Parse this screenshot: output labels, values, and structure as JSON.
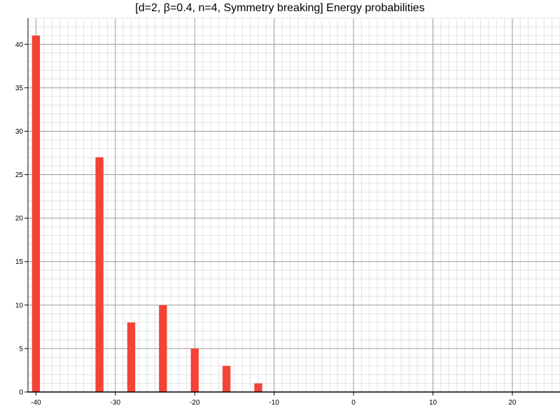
{
  "chart_data": {
    "type": "bar",
    "title": "[d=2, β=0.4, n=4, Symmetry breaking] Energy probabilities",
    "xlabel": "",
    "ylabel": "",
    "xlim": [
      -41,
      26
    ],
    "ylim": [
      0,
      43
    ],
    "x_ticks": [
      -40,
      -30,
      -20,
      -10,
      0,
      10,
      20
    ],
    "y_ticks": [
      0,
      5,
      10,
      15,
      20,
      25,
      30,
      35,
      40
    ],
    "x_minor_step": 1,
    "y_minor_step": 1,
    "grid": true,
    "bar_width": 1,
    "x": [
      -40,
      -32,
      -28,
      -24,
      -20,
      -16,
      -12
    ],
    "values": [
      41,
      27,
      8,
      10,
      5,
      3,
      1
    ],
    "color": "#f44336"
  }
}
